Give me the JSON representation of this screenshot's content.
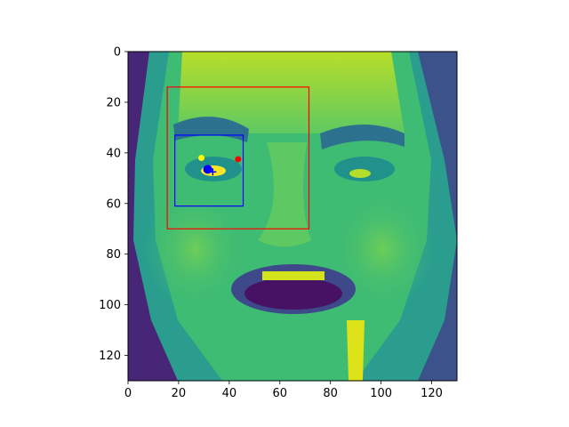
{
  "chart_data": {
    "type": "image",
    "title": "",
    "xlabel": "",
    "ylabel": "",
    "xlim": [
      0,
      130
    ],
    "ylim": [
      130,
      0
    ],
    "image_size": [
      130,
      130
    ],
    "colormap": "viridis",
    "x_ticks": [
      0,
      20,
      40,
      60,
      80,
      100,
      120
    ],
    "y_ticks": [
      0,
      20,
      40,
      60,
      80,
      100,
      120
    ],
    "tick_labels_x": [
      "0",
      "20",
      "40",
      "60",
      "80",
      "100",
      "120"
    ],
    "tick_labels_y": [
      "0",
      "20",
      "40",
      "60",
      "80",
      "100",
      "120"
    ],
    "rectangles": [
      {
        "name": "face-box",
        "x0": 15.5,
        "y0": 14.0,
        "x1": 71.5,
        "y1": 70.0,
        "color": "#ff0000"
      },
      {
        "name": "eye-box",
        "x0": 18.5,
        "y0": 33.0,
        "x1": 45.5,
        "y1": 61.0,
        "color": "#0000ff"
      }
    ],
    "points": [
      {
        "name": "red-point",
        "x": 43.5,
        "y": 42.5,
        "color": "#ff0000"
      },
      {
        "name": "blue-point",
        "x": 31.5,
        "y": 46.5,
        "color": "#0000ff"
      },
      {
        "name": "yellow-point",
        "x": 29.0,
        "y": 42.0,
        "color": "#ffff00"
      },
      {
        "name": "blue-plus",
        "x": 33.5,
        "y": 47.5,
        "color": "#0000ff"
      }
    ]
  }
}
